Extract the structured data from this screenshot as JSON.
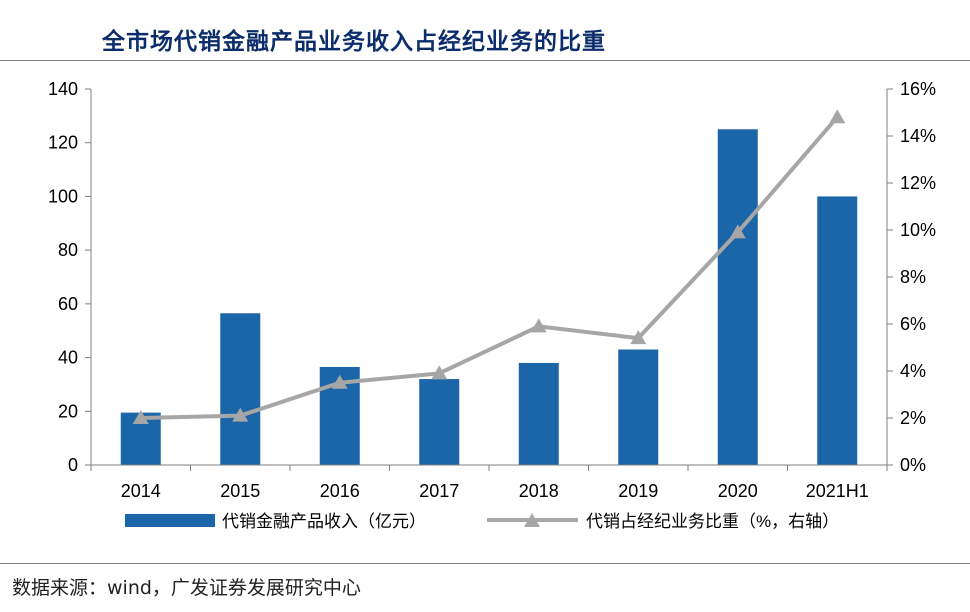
{
  "title": "全市场代销金融产品业务收入占经纪业务的比重",
  "source": "数据来源：wind，广发证券发展研究中心",
  "colors": {
    "bar": "#1a66a8",
    "line": "#a6a6a6",
    "title": "#0b2d6b"
  },
  "chart_data": {
    "type": "bar+line",
    "categories": [
      "2014",
      "2015",
      "2016",
      "2017",
      "2018",
      "2019",
      "2020",
      "2021H1"
    ],
    "series": [
      {
        "name": "代销金融产品收入（亿元）",
        "type": "bar",
        "axis": "left",
        "values": [
          19.5,
          56.5,
          36.5,
          32,
          38,
          43,
          125,
          100
        ]
      },
      {
        "name": "代销占经纪业务比重（%，右轴）",
        "type": "line",
        "axis": "right",
        "marker": "triangle",
        "values": [
          2.0,
          2.1,
          3.5,
          3.9,
          5.9,
          5.4,
          9.9,
          14.8
        ]
      }
    ],
    "left_axis": {
      "min": 0,
      "max": 140,
      "ticks": [
        "0",
        "20",
        "40",
        "60",
        "80",
        "100",
        "120",
        "140"
      ]
    },
    "right_axis": {
      "min": 0,
      "max": 16,
      "ticks": [
        "0%",
        "2%",
        "4%",
        "6%",
        "8%",
        "10%",
        "12%",
        "14%",
        "16%"
      ]
    },
    "legend_position": "bottom"
  }
}
